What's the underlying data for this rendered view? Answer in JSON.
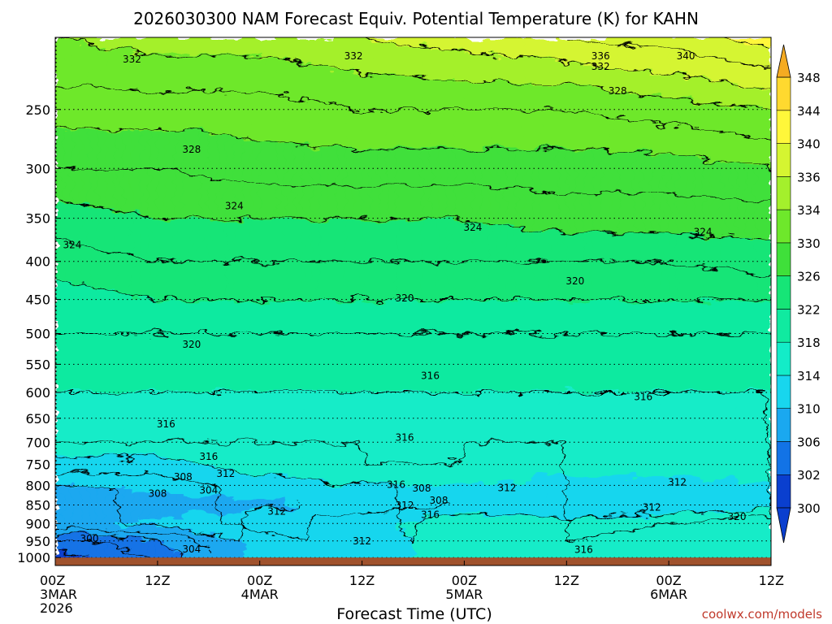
{
  "chart_data": {
    "type": "heatmap",
    "title": "2026030300 NAM Forecast Equiv. Potential Temperature (K) for KAHN",
    "xlabel": "Forecast Time (UTC)",
    "ylabel": "",
    "y_scale": "log",
    "ylim": [
      1025,
      200
    ],
    "y_ticks": [
      250,
      300,
      350,
      400,
      450,
      500,
      550,
      600,
      650,
      700,
      750,
      800,
      850,
      900,
      950,
      1000
    ],
    "x_ticks": [
      {
        "hours": 0,
        "line1": "00Z",
        "line2": "3MAR",
        "line3": "2026"
      },
      {
        "hours": 12,
        "line1": "12Z",
        "line2": "",
        "line3": ""
      },
      {
        "hours": 24,
        "line1": "00Z",
        "line2": "4MAR",
        "line3": ""
      },
      {
        "hours": 36,
        "line1": "12Z",
        "line2": "",
        "line3": ""
      },
      {
        "hours": 48,
        "line1": "00Z",
        "line2": "5MAR",
        "line3": ""
      },
      {
        "hours": 60,
        "line1": "12Z",
        "line2": "",
        "line3": ""
      },
      {
        "hours": 72,
        "line1": "00Z",
        "line2": "6MAR",
        "line3": ""
      },
      {
        "hours": 84,
        "line1": "12Z",
        "line2": "",
        "line3": ""
      }
    ],
    "xlim": [
      0,
      84
    ],
    "grid": true,
    "colorbar": {
      "levels": [
        300,
        302,
        306,
        310,
        314,
        318,
        322,
        326,
        330,
        334,
        336,
        340,
        344,
        348
      ],
      "labels": [
        "300",
        "302",
        "306",
        "310",
        "314",
        "318",
        "322",
        "326",
        "330",
        "334",
        "336",
        "340",
        "344",
        "348"
      ],
      "colors": [
        "#0a3fcf",
        "#1273e6",
        "#1aa8f0",
        "#18d6ee",
        "#13ecc8",
        "#10eaa0",
        "#16e577",
        "#3fe03a",
        "#6ee82b",
        "#a4f02c",
        "#d5f531",
        "#fff73a",
        "#ffd92f",
        "#f5ab22"
      ]
    },
    "profile_levels_hpa": [
      1000,
      950,
      900,
      850,
      800,
      750,
      700,
      650,
      600,
      550,
      500,
      450,
      400,
      350,
      300,
      250,
      200
    ],
    "profile_theta_e_k": [
      {
        "hours": 0,
        "values": [
          301,
          303,
          309,
          307,
          310,
          313,
          316,
          317,
          318,
          319,
          320,
          321,
          323,
          325,
          328,
          331,
          334
        ]
      },
      {
        "hours": 12,
        "values": [
          304,
          306,
          311,
          308,
          311,
          313,
          316,
          317,
          318,
          319,
          320,
          322,
          324,
          326,
          328,
          331,
          335
        ]
      },
      {
        "hours": 24,
        "values": [
          311,
          311,
          313,
          309,
          313,
          315,
          316,
          317,
          318,
          319,
          320,
          322,
          324,
          326,
          329,
          331,
          335
        ]
      },
      {
        "hours": 36,
        "values": [
          313,
          313,
          313,
          311,
          314,
          316,
          316,
          317,
          318,
          319,
          320,
          322,
          324,
          326,
          329,
          332,
          336
        ]
      },
      {
        "hours": 48,
        "values": [
          315,
          315,
          316,
          312,
          314,
          316,
          316,
          317,
          318,
          319,
          320,
          322,
          324,
          326,
          329,
          332,
          337
        ]
      },
      {
        "hours": 60,
        "values": [
          316,
          316,
          315,
          312,
          313,
          315,
          316,
          317,
          318,
          319,
          320,
          322,
          324,
          327,
          329,
          332,
          338
        ]
      },
      {
        "hours": 72,
        "values": [
          317,
          317,
          316,
          312,
          313,
          315,
          316,
          317,
          318,
          319,
          320,
          322,
          324,
          327,
          329,
          333,
          339
        ]
      },
      {
        "hours": 84,
        "values": [
          318,
          318,
          318,
          313,
          314,
          316,
          316,
          317,
          318,
          319,
          320,
          322,
          325,
          327,
          330,
          334,
          341
        ]
      }
    ],
    "contour_labels": [
      {
        "text": "332",
        "hours": 9,
        "hpa": 214
      },
      {
        "text": "332",
        "hours": 35,
        "hpa": 212
      },
      {
        "text": "336",
        "hours": 64,
        "hpa": 212
      },
      {
        "text": "340",
        "hours": 74,
        "hpa": 212
      },
      {
        "text": "332",
        "hours": 64,
        "hpa": 219
      },
      {
        "text": "328",
        "hours": 66,
        "hpa": 236
      },
      {
        "text": "328",
        "hours": 16,
        "hpa": 283
      },
      {
        "text": "324",
        "hours": 21,
        "hpa": 337
      },
      {
        "text": "324",
        "hours": 2,
        "hpa": 380
      },
      {
        "text": "324",
        "hours": 49,
        "hpa": 360
      },
      {
        "text": "324",
        "hours": 76,
        "hpa": 365
      },
      {
        "text": "320",
        "hours": 41,
        "hpa": 448
      },
      {
        "text": "320",
        "hours": 61,
        "hpa": 425
      },
      {
        "text": "320",
        "hours": 16,
        "hpa": 517
      },
      {
        "text": "316",
        "hours": 44,
        "hpa": 570
      },
      {
        "text": "316",
        "hours": 69,
        "hpa": 608
      },
      {
        "text": "316",
        "hours": 13,
        "hpa": 662
      },
      {
        "text": "316",
        "hours": 41,
        "hpa": 690
      },
      {
        "text": "316",
        "hours": 18,
        "hpa": 732
      },
      {
        "text": "308",
        "hours": 15,
        "hpa": 779
      },
      {
        "text": "312",
        "hours": 20,
        "hpa": 772
      },
      {
        "text": "304",
        "hours": 18,
        "hpa": 812
      },
      {
        "text": "308",
        "hours": 12,
        "hpa": 821
      },
      {
        "text": "312",
        "hours": 26,
        "hpa": 867
      },
      {
        "text": "316",
        "hours": 40,
        "hpa": 798
      },
      {
        "text": "308",
        "hours": 43,
        "hpa": 807
      },
      {
        "text": "312",
        "hours": 53,
        "hpa": 806
      },
      {
        "text": "308",
        "hours": 45,
        "hpa": 838
      },
      {
        "text": "312",
        "hours": 41,
        "hpa": 851
      },
      {
        "text": "316",
        "hours": 44,
        "hpa": 876
      },
      {
        "text": "312",
        "hours": 73,
        "hpa": 792
      },
      {
        "text": "312",
        "hours": 70,
        "hpa": 856
      },
      {
        "text": "320",
        "hours": 80,
        "hpa": 882
      },
      {
        "text": "312",
        "hours": 36,
        "hpa": 951
      },
      {
        "text": "316",
        "hours": 62,
        "hpa": 976
      },
      {
        "text": "300",
        "hours": 4,
        "hpa": 943
      },
      {
        "text": "304",
        "hours": 16,
        "hpa": 975
      }
    ],
    "terrain": {
      "from_hpa": 1000,
      "to_hpa": 1025,
      "color": "#a0522d"
    }
  },
  "credit": "coolwx.com/models"
}
